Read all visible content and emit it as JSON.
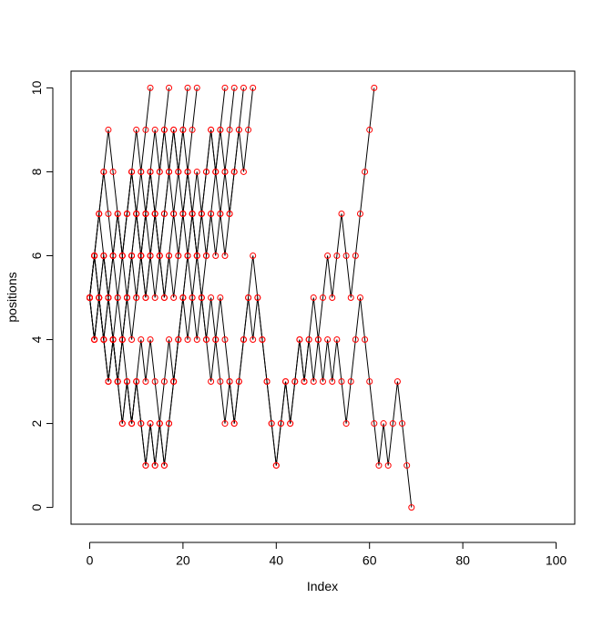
{
  "chart_data": {
    "type": "line",
    "xlabel": "Index",
    "ylabel": "positions",
    "xlim": [
      -4,
      104
    ],
    "ylim": [
      -0.4,
      10.4
    ],
    "xticks": [
      0,
      20,
      40,
      60,
      80,
      100
    ],
    "yticks": [
      0,
      2,
      4,
      6,
      8,
      10
    ],
    "line_color": "#000000",
    "point_color": "#ff0000",
    "series": [
      {
        "values": [
          5,
          6,
          7,
          8,
          9,
          8,
          7,
          6,
          7,
          8,
          9,
          8,
          9,
          10
        ]
      },
      {
        "values": [
          5,
          4,
          5,
          6,
          5,
          6,
          7,
          6,
          7,
          8,
          7,
          8,
          7,
          8,
          9,
          8,
          9,
          10
        ]
      },
      {
        "values": [
          5,
          6,
          5,
          4,
          5,
          4,
          3,
          4,
          5,
          6,
          7,
          6,
          7,
          8,
          7,
          8,
          9,
          8,
          9,
          8,
          9,
          10
        ]
      },
      {
        "values": [
          5,
          6,
          7,
          6,
          5,
          4,
          5,
          6,
          5,
          6,
          5,
          6,
          7,
          6,
          7,
          6,
          7,
          8,
          7,
          8,
          9,
          8,
          9,
          10
        ]
      },
      {
        "values": [
          5,
          4,
          5,
          4,
          3,
          4,
          3,
          2,
          3,
          2,
          3,
          2,
          1,
          2,
          1,
          2,
          3,
          4,
          3,
          4,
          5,
          6,
          7,
          8,
          7,
          8,
          9,
          8,
          9,
          10
        ]
      },
      {
        "values": [
          5,
          6,
          5,
          4,
          5,
          4,
          3,
          4,
          5,
          4,
          5,
          6,
          5,
          6,
          7,
          6,
          5,
          6,
          5,
          6,
          7,
          6,
          7,
          6,
          5,
          6,
          7,
          8,
          9,
          8,
          9,
          10
        ]
      },
      {
        "values": [
          5,
          6,
          7,
          8,
          7,
          6,
          7,
          6,
          7,
          8,
          7,
          6,
          7,
          8,
          7,
          6,
          5,
          6,
          7,
          6,
          7,
          8,
          7,
          6,
          7,
          8,
          9,
          8,
          7,
          6,
          7,
          8,
          9,
          10
        ]
      },
      {
        "values": [
          5,
          4,
          5,
          6,
          5,
          6,
          5,
          4,
          5,
          6,
          7,
          6,
          5,
          6,
          5,
          6,
          7,
          8,
          9,
          8,
          7,
          8,
          7,
          6,
          7,
          6,
          7,
          6,
          7,
          8,
          7,
          8,
          9,
          8,
          9,
          10
        ]
      },
      {
        "values": [
          5,
          6,
          5,
          4,
          3,
          4,
          3,
          2,
          3,
          2,
          3,
          4,
          3,
          4,
          3,
          2,
          1,
          2,
          3,
          4,
          5,
          4,
          5,
          6,
          5,
          4,
          5,
          4,
          3,
          2,
          3,
          2,
          3,
          4,
          5,
          4,
          5,
          4,
          3,
          2,
          1,
          2,
          3,
          2,
          3,
          4,
          3,
          4,
          5,
          4,
          5,
          6,
          5,
          6,
          7,
          6,
          5,
          6,
          7,
          8,
          9,
          10
        ]
      },
      {
        "values": [
          5,
          4,
          5,
          4,
          3,
          4,
          3,
          4,
          3,
          2,
          3,
          2,
          1,
          2,
          1,
          2,
          1,
          2,
          3,
          4,
          5,
          6,
          5,
          4,
          5,
          4,
          3,
          4,
          5,
          4,
          3,
          2,
          3,
          4,
          5,
          6,
          5,
          4,
          3,
          2,
          1,
          2,
          3,
          2,
          3,
          4,
          3,
          4,
          3,
          4,
          3,
          4,
          3,
          4,
          3,
          2,
          3,
          4,
          5,
          4,
          3,
          2,
          1,
          2,
          1,
          2,
          3,
          2,
          1,
          0
        ]
      }
    ]
  }
}
